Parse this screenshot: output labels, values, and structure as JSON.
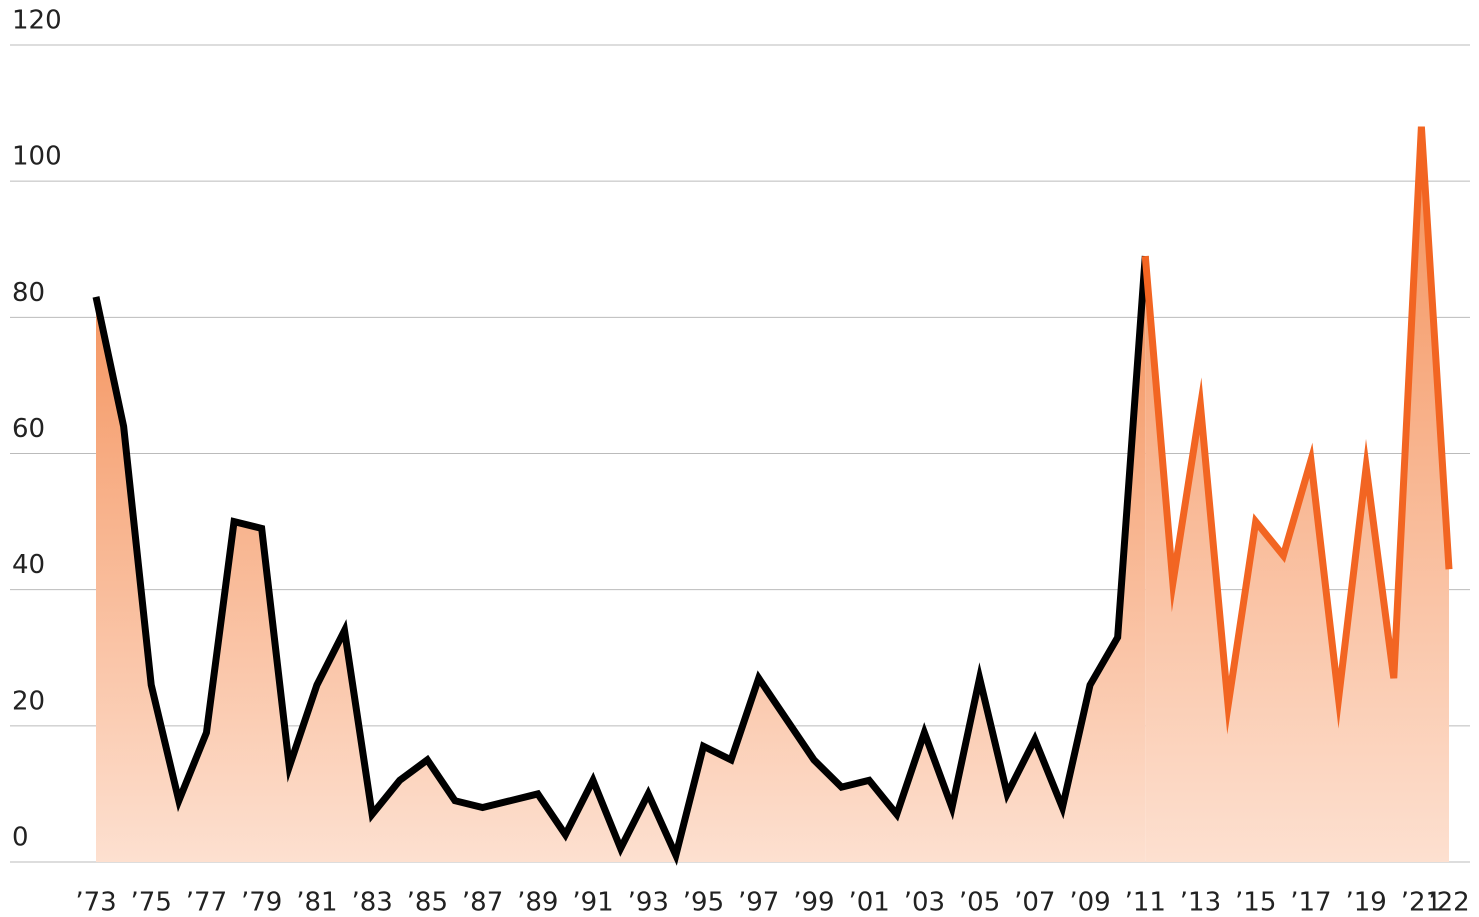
{
  "chart_data": {
    "type": "line",
    "categories": [
      "’73",
      null,
      "’75",
      null,
      "’77",
      null,
      "’79",
      null,
      "’81",
      null,
      "’83",
      null,
      "’85",
      null,
      "’87",
      null,
      "’89",
      null,
      "’91",
      null,
      "’93",
      null,
      "’95",
      null,
      "’97",
      null,
      "’99",
      null,
      "’01",
      null,
      "’03",
      null,
      "’05",
      null,
      "’07",
      null,
      "’09",
      null,
      "’11",
      null,
      "’13",
      null,
      "’15",
      null,
      "’17",
      null,
      "’19",
      null,
      "’21",
      "’22"
    ],
    "series": [
      {
        "color": "#000000",
        "values": [
          83,
          64,
          26,
          9,
          19,
          50,
          49,
          14,
          26,
          34,
          7,
          12,
          15,
          9,
          8,
          9,
          10,
          4,
          12,
          2,
          10,
          1,
          17,
          15,
          27,
          21,
          15,
          11,
          12,
          7,
          19,
          8,
          27,
          10,
          18,
          8,
          26,
          33,
          89,
          null,
          null,
          null,
          null,
          null,
          null,
          null,
          null,
          null,
          null,
          null
        ]
      },
      {
        "color": "#f26522",
        "values": [
          null,
          null,
          null,
          null,
          null,
          null,
          null,
          null,
          null,
          null,
          null,
          null,
          null,
          null,
          null,
          null,
          null,
          null,
          null,
          null,
          null,
          null,
          null,
          null,
          null,
          null,
          null,
          null,
          null,
          null,
          null,
          null,
          null,
          null,
          null,
          null,
          null,
          null,
          89,
          41,
          67,
          23,
          50,
          45,
          59,
          24,
          58,
          27,
          108,
          43
        ]
      }
    ],
    "area_gradient": [
      "#f4915a",
      "#fde0d0"
    ],
    "ylim": [
      0,
      120
    ],
    "yticks": [
      0,
      20,
      40,
      60,
      80,
      100,
      120
    ],
    "grid": true
  }
}
